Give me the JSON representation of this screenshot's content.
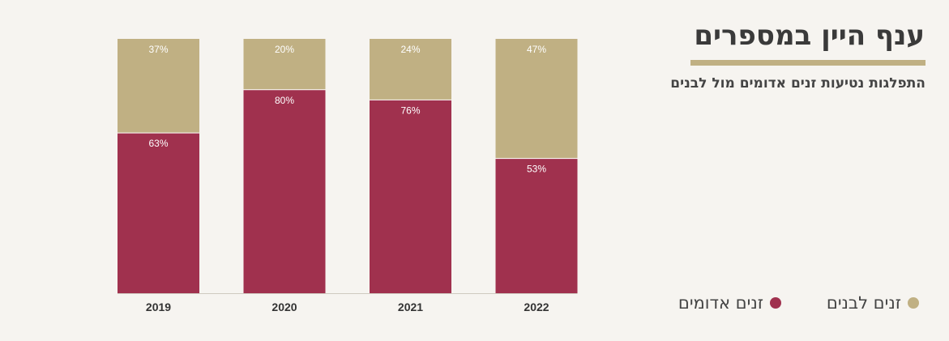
{
  "title": "ענף היין במספרים",
  "subtitle": "התפלגות נטיעות זנים אדומים מול לבנים",
  "legend": {
    "white_label": "זנים לבנים",
    "red_label": "זנים אדומים"
  },
  "colors": {
    "red": "#a0314e",
    "white": "#c0b083",
    "background": "#f6f4f0"
  },
  "chart_data": {
    "type": "bar",
    "stacked": true,
    "categories": [
      "2019",
      "2020",
      "2021",
      "2022"
    ],
    "series": [
      {
        "name": "זנים אדומים",
        "values": [
          63,
          80,
          76,
          53
        ],
        "labels": [
          "63%",
          "80%",
          "76%",
          "53%"
        ]
      },
      {
        "name": "זנים לבנים",
        "values": [
          37,
          20,
          24,
          47
        ],
        "labels": [
          "37%",
          "20%",
          "24%",
          "47%"
        ]
      }
    ],
    "title": "",
    "xlabel": "",
    "ylabel": "",
    "ylim": [
      0,
      100
    ],
    "grid": false,
    "legend_position": "bottom-right"
  }
}
